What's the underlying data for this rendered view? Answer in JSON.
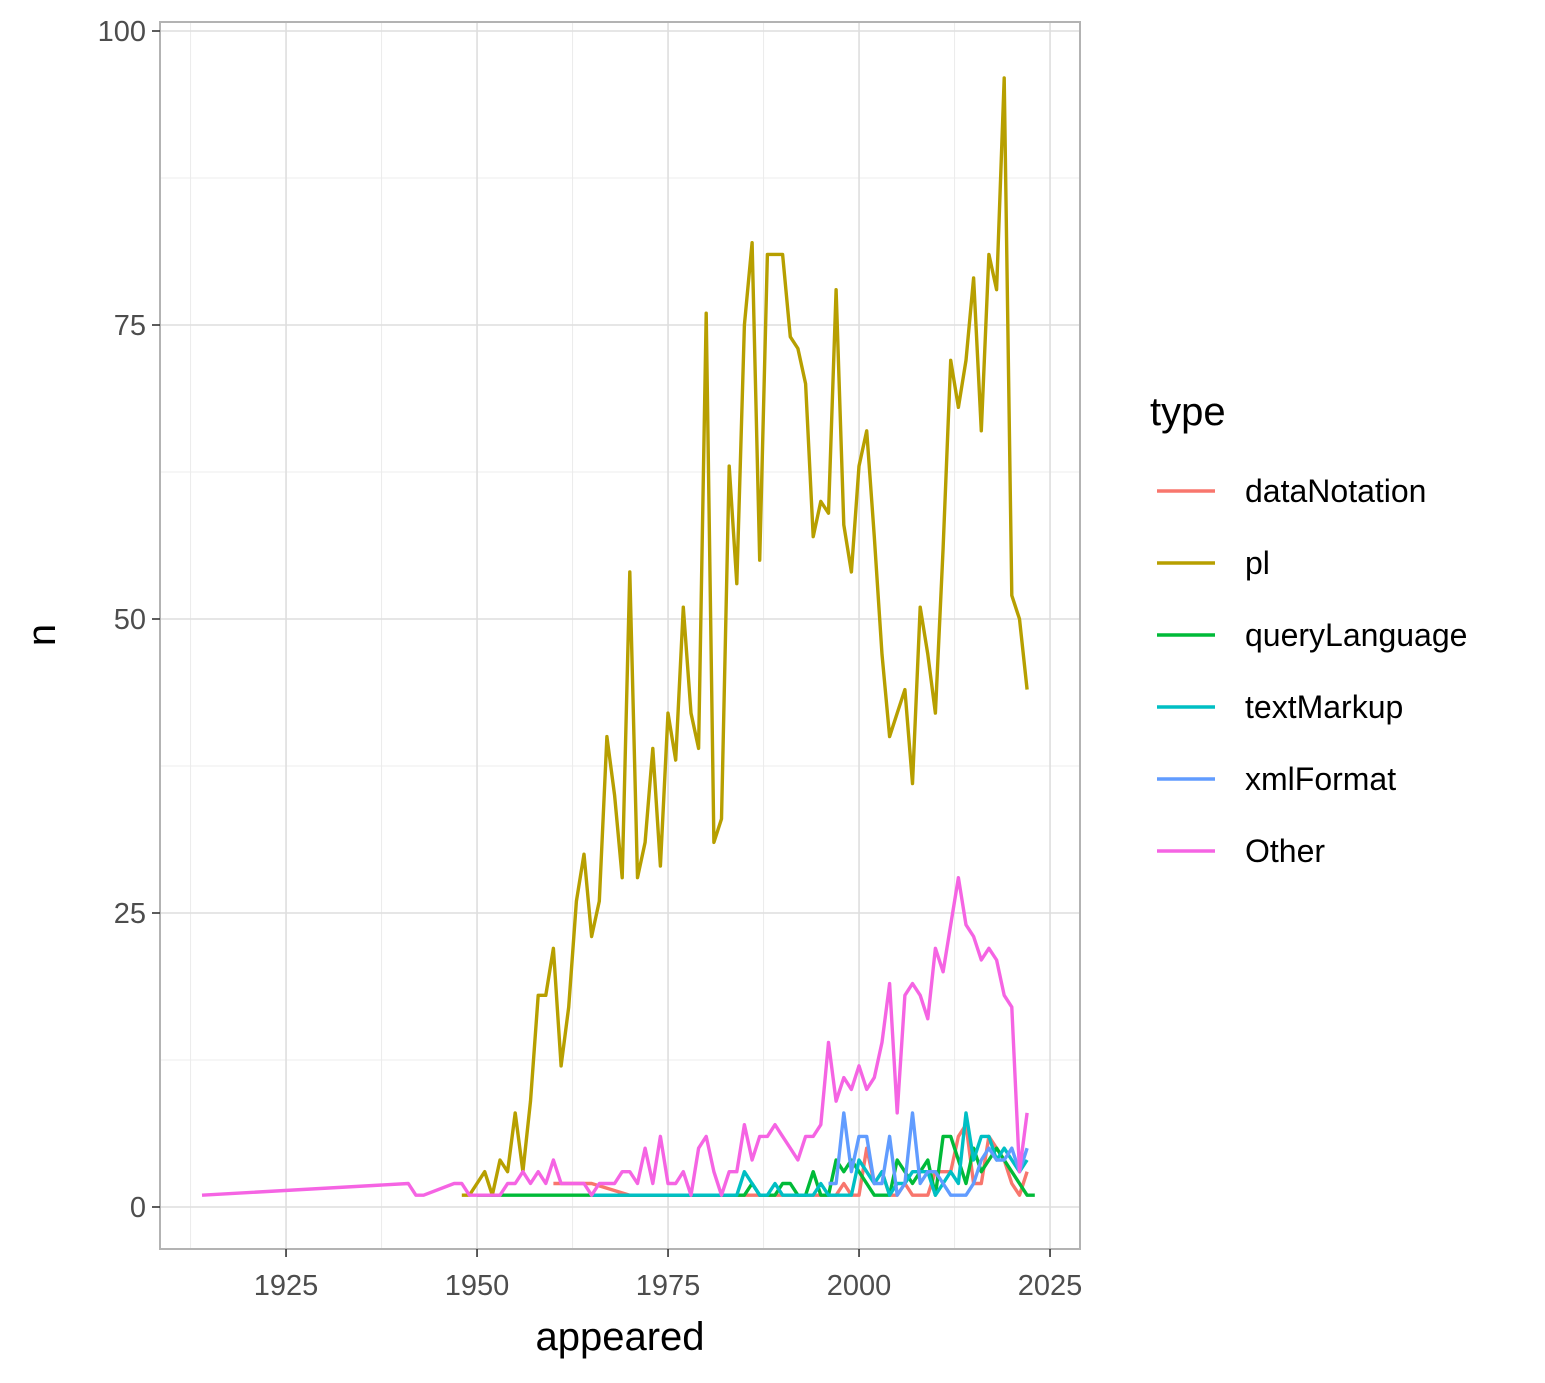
{
  "chart_data": {
    "type": "line",
    "title": "",
    "xlabel": "appeared",
    "ylabel": "n",
    "xlim": [
      1910,
      2025
    ],
    "ylim": [
      -3,
      100
    ],
    "x_ticks": [
      1925,
      1950,
      1975,
      2000,
      2025
    ],
    "y_ticks": [
      0,
      25,
      50,
      75,
      100
    ],
    "grid": true,
    "legend": {
      "title": "type",
      "position": "right"
    },
    "series": [
      {
        "name": "dataNotation",
        "color": "#F8766D",
        "points": [
          [
            1960,
            2
          ],
          [
            1965,
            2
          ],
          [
            1970,
            1
          ],
          [
            1975,
            1
          ],
          [
            1980,
            1
          ],
          [
            1985,
            1
          ],
          [
            1990,
            1
          ],
          [
            1995,
            1
          ],
          [
            1996,
            1
          ],
          [
            1997,
            1
          ],
          [
            1998,
            2
          ],
          [
            1999,
            1
          ],
          [
            2000,
            1
          ],
          [
            2001,
            5
          ],
          [
            2002,
            2
          ],
          [
            2003,
            3
          ],
          [
            2004,
            1
          ],
          [
            2005,
            1
          ],
          [
            2006,
            2
          ],
          [
            2007,
            1
          ],
          [
            2008,
            1
          ],
          [
            2009,
            1
          ],
          [
            2010,
            3
          ],
          [
            2011,
            3
          ],
          [
            2012,
            3
          ],
          [
            2013,
            6
          ],
          [
            2014,
            7
          ],
          [
            2015,
            2
          ],
          [
            2016,
            2
          ],
          [
            2017,
            6
          ],
          [
            2018,
            5
          ],
          [
            2019,
            4
          ],
          [
            2020,
            2
          ],
          [
            2021,
            1
          ],
          [
            2022,
            3
          ]
        ]
      },
      {
        "name": "pl",
        "color": "#B79F00",
        "points": [
          [
            1948,
            1
          ],
          [
            1949,
            1
          ],
          [
            1950,
            2
          ],
          [
            1951,
            3
          ],
          [
            1952,
            1
          ],
          [
            1953,
            4
          ],
          [
            1954,
            3
          ],
          [
            1955,
            8
          ],
          [
            1956,
            3
          ],
          [
            1957,
            9
          ],
          [
            1958,
            18
          ],
          [
            1959,
            18
          ],
          [
            1960,
            22
          ],
          [
            1961,
            12
          ],
          [
            1962,
            17
          ],
          [
            1963,
            26
          ],
          [
            1964,
            30
          ],
          [
            1965,
            23
          ],
          [
            1966,
            26
          ],
          [
            1967,
            40
          ],
          [
            1968,
            35
          ],
          [
            1969,
            28
          ],
          [
            1970,
            54
          ],
          [
            1971,
            28
          ],
          [
            1972,
            31
          ],
          [
            1973,
            39
          ],
          [
            1974,
            29
          ],
          [
            1975,
            42
          ],
          [
            1976,
            38
          ],
          [
            1977,
            51
          ],
          [
            1978,
            42
          ],
          [
            1979,
            39
          ],
          [
            1980,
            76
          ],
          [
            1981,
            31
          ],
          [
            1982,
            33
          ],
          [
            1983,
            63
          ],
          [
            1984,
            53
          ],
          [
            1985,
            75
          ],
          [
            1986,
            82
          ],
          [
            1987,
            55
          ],
          [
            1988,
            81
          ],
          [
            1989,
            81
          ],
          [
            1990,
            81
          ],
          [
            1991,
            74
          ],
          [
            1992,
            73
          ],
          [
            1993,
            70
          ],
          [
            1994,
            57
          ],
          [
            1995,
            60
          ],
          [
            1996,
            59
          ],
          [
            1997,
            78
          ],
          [
            1998,
            58
          ],
          [
            1999,
            54
          ],
          [
            2000,
            63
          ],
          [
            2001,
            66
          ],
          [
            2002,
            57
          ],
          [
            2003,
            47
          ],
          [
            2004,
            40
          ],
          [
            2005,
            42
          ],
          [
            2006,
            44
          ],
          [
            2007,
            36
          ],
          [
            2008,
            51
          ],
          [
            2009,
            47
          ],
          [
            2010,
            42
          ],
          [
            2011,
            56
          ],
          [
            2012,
            72
          ],
          [
            2013,
            68
          ],
          [
            2014,
            72
          ],
          [
            2015,
            79
          ],
          [
            2016,
            66
          ],
          [
            2017,
            81
          ],
          [
            2018,
            78
          ],
          [
            2019,
            96
          ],
          [
            2020,
            52
          ],
          [
            2021,
            50
          ],
          [
            2022,
            44
          ]
        ]
      },
      {
        "name": "queryLanguage",
        "color": "#00BA38",
        "points": [
          [
            1950,
            1
          ],
          [
            1955,
            1
          ],
          [
            1960,
            1
          ],
          [
            1965,
            1
          ],
          [
            1970,
            1
          ],
          [
            1975,
            1
          ],
          [
            1980,
            1
          ],
          [
            1985,
            1
          ],
          [
            1986,
            2
          ],
          [
            1987,
            1
          ],
          [
            1988,
            1
          ],
          [
            1989,
            1
          ],
          [
            1990,
            2
          ],
          [
            1991,
            2
          ],
          [
            1992,
            1
          ],
          [
            1993,
            1
          ],
          [
            1994,
            3
          ],
          [
            1995,
            1
          ],
          [
            1996,
            1
          ],
          [
            1997,
            4
          ],
          [
            1998,
            3
          ],
          [
            1999,
            4
          ],
          [
            2000,
            3
          ],
          [
            2001,
            2
          ],
          [
            2002,
            1
          ],
          [
            2003,
            1
          ],
          [
            2004,
            1
          ],
          [
            2005,
            4
          ],
          [
            2006,
            3
          ],
          [
            2007,
            2
          ],
          [
            2008,
            3
          ],
          [
            2009,
            4
          ],
          [
            2010,
            1
          ],
          [
            2011,
            6
          ],
          [
            2012,
            6
          ],
          [
            2013,
            4
          ],
          [
            2014,
            2
          ],
          [
            2015,
            5
          ],
          [
            2016,
            3
          ],
          [
            2017,
            4
          ],
          [
            2018,
            5
          ],
          [
            2019,
            4
          ],
          [
            2020,
            3
          ],
          [
            2021,
            2
          ],
          [
            2022,
            1
          ],
          [
            2023,
            1
          ]
        ]
      },
      {
        "name": "textMarkup",
        "color": "#00BFC4",
        "points": [
          [
            1965,
            1
          ],
          [
            1970,
            1
          ],
          [
            1975,
            1
          ],
          [
            1980,
            1
          ],
          [
            1984,
            1
          ],
          [
            1985,
            3
          ],
          [
            1986,
            2
          ],
          [
            1987,
            1
          ],
          [
            1988,
            1
          ],
          [
            1989,
            2
          ],
          [
            1990,
            1
          ],
          [
            1991,
            1
          ],
          [
            1992,
            1
          ],
          [
            1993,
            1
          ],
          [
            1994,
            1
          ],
          [
            1995,
            2
          ],
          [
            1996,
            1
          ],
          [
            1997,
            1
          ],
          [
            1998,
            1
          ],
          [
            1999,
            1
          ],
          [
            2000,
            4
          ],
          [
            2001,
            3
          ],
          [
            2002,
            2
          ],
          [
            2003,
            3
          ],
          [
            2004,
            1
          ],
          [
            2005,
            2
          ],
          [
            2006,
            2
          ],
          [
            2007,
            3
          ],
          [
            2008,
            3
          ],
          [
            2009,
            3
          ],
          [
            2010,
            1
          ],
          [
            2011,
            2
          ],
          [
            2012,
            3
          ],
          [
            2013,
            2
          ],
          [
            2014,
            8
          ],
          [
            2015,
            4
          ],
          [
            2016,
            6
          ],
          [
            2017,
            6
          ],
          [
            2018,
            4
          ],
          [
            2019,
            5
          ],
          [
            2020,
            4
          ],
          [
            2021,
            3
          ],
          [
            2022,
            4
          ]
        ]
      },
      {
        "name": "xmlFormat",
        "color": "#619CFF",
        "points": [
          [
            1996,
            2
          ],
          [
            1997,
            2
          ],
          [
            1998,
            8
          ],
          [
            1999,
            3
          ],
          [
            2000,
            6
          ],
          [
            2001,
            6
          ],
          [
            2002,
            2
          ],
          [
            2003,
            2
          ],
          [
            2004,
            6
          ],
          [
            2005,
            1
          ],
          [
            2006,
            2
          ],
          [
            2007,
            8
          ],
          [
            2008,
            2
          ],
          [
            2009,
            3
          ],
          [
            2010,
            3
          ],
          [
            2011,
            2
          ],
          [
            2012,
            1
          ],
          [
            2013,
            1
          ],
          [
            2014,
            1
          ],
          [
            2015,
            2
          ],
          [
            2016,
            4
          ],
          [
            2017,
            5
          ],
          [
            2018,
            4
          ],
          [
            2019,
            4
          ],
          [
            2020,
            5
          ],
          [
            2021,
            3
          ],
          [
            2022,
            5
          ]
        ]
      },
      {
        "name": "Other",
        "color": "#F564E3",
        "points": [
          [
            1914,
            1
          ],
          [
            1941,
            2
          ],
          [
            1942,
            1
          ],
          [
            1943,
            1
          ],
          [
            1947,
            2
          ],
          [
            1948,
            2
          ],
          [
            1949,
            1
          ],
          [
            1950,
            1
          ],
          [
            1951,
            1
          ],
          [
            1952,
            1
          ],
          [
            1953,
            1
          ],
          [
            1954,
            2
          ],
          [
            1955,
            2
          ],
          [
            1956,
            3
          ],
          [
            1957,
            2
          ],
          [
            1958,
            3
          ],
          [
            1959,
            2
          ],
          [
            1960,
            4
          ],
          [
            1961,
            2
          ],
          [
            1962,
            2
          ],
          [
            1963,
            2
          ],
          [
            1964,
            2
          ],
          [
            1965,
            1
          ],
          [
            1966,
            2
          ],
          [
            1967,
            2
          ],
          [
            1968,
            2
          ],
          [
            1969,
            3
          ],
          [
            1970,
            3
          ],
          [
            1971,
            2
          ],
          [
            1972,
            5
          ],
          [
            1973,
            2
          ],
          [
            1974,
            6
          ],
          [
            1975,
            2
          ],
          [
            1976,
            2
          ],
          [
            1977,
            3
          ],
          [
            1978,
            1
          ],
          [
            1979,
            5
          ],
          [
            1980,
            6
          ],
          [
            1981,
            3
          ],
          [
            1982,
            1
          ],
          [
            1983,
            3
          ],
          [
            1984,
            3
          ],
          [
            1985,
            7
          ],
          [
            1986,
            4
          ],
          [
            1987,
            6
          ],
          [
            1988,
            6
          ],
          [
            1989,
            7
          ],
          [
            1990,
            6
          ],
          [
            1991,
            5
          ],
          [
            1992,
            4
          ],
          [
            1993,
            6
          ],
          [
            1994,
            6
          ],
          [
            1995,
            7
          ],
          [
            1996,
            14
          ],
          [
            1997,
            9
          ],
          [
            1998,
            11
          ],
          [
            1999,
            10
          ],
          [
            2000,
            12
          ],
          [
            2001,
            10
          ],
          [
            2002,
            11
          ],
          [
            2003,
            14
          ],
          [
            2004,
            19
          ],
          [
            2005,
            8
          ],
          [
            2006,
            18
          ],
          [
            2007,
            19
          ],
          [
            2008,
            18
          ],
          [
            2009,
            16
          ],
          [
            2010,
            22
          ],
          [
            2011,
            20
          ],
          [
            2012,
            24
          ],
          [
            2013,
            28
          ],
          [
            2014,
            24
          ],
          [
            2015,
            23
          ],
          [
            2016,
            21
          ],
          [
            2017,
            22
          ],
          [
            2018,
            21
          ],
          [
            2019,
            18
          ],
          [
            2020,
            17
          ],
          [
            2021,
            3
          ],
          [
            2022,
            8
          ]
        ]
      }
    ]
  }
}
